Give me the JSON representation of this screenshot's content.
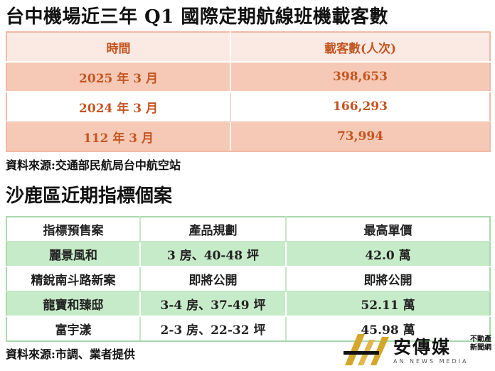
{
  "title": "台中機場近三年 Q1 國際定期航線班機載客數",
  "table1": {
    "headers": [
      "時間",
      "載客數(人次)"
    ],
    "rows": [
      [
        "2025 年 3 月",
        "398,653"
      ],
      [
        "2024 年 3 月",
        "166,293"
      ],
      [
        "112 年 3 月",
        "73,994"
      ]
    ]
  },
  "source1": "資料來源:交通部民航局台中航空站",
  "subtitle": "沙鹿區近期指標個案",
  "table2": {
    "headers": [
      "指標預售案",
      "產品規劃",
      "最高單價"
    ],
    "rows": [
      [
        "麗景風和",
        "3 房、40-48 坪",
        "42.0 萬"
      ],
      [
        "精銳南斗路新案",
        "即將公開",
        "即將公開"
      ],
      [
        "龍寶和臻邸",
        "3-4 房、37-49 坪",
        "52.11 萬"
      ],
      [
        "富宇漾",
        "2-3 房、22-32 坪",
        "45.98 萬"
      ]
    ]
  },
  "source2": "資料來源:市調、業者提供",
  "logo": {
    "name": "安傳媒",
    "side_line1": "不動產",
    "side_line2": "新聞網",
    "tagline": "AN NEWS MEDIA"
  },
  "colors": {
    "table1_text": "#c4541f",
    "table1_band": "#f5c9b6",
    "table2_band": "#c6ebc8",
    "logo_gold": "#d4a62a"
  }
}
